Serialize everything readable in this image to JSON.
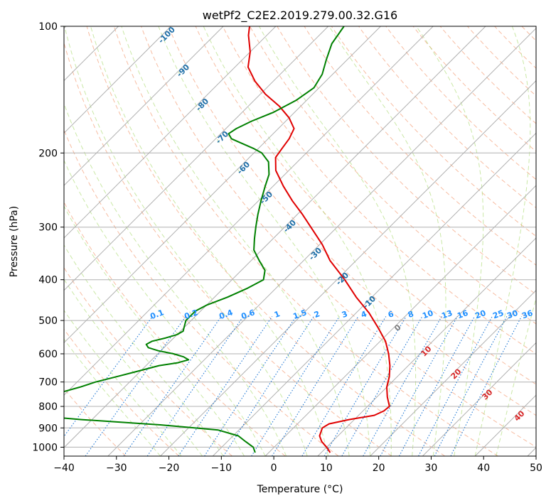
{
  "chart_data": {
    "type": "line",
    "title": "wetPf2_C2E2.2019.279.00.32.G16",
    "xlabel": "Temperature (°C)",
    "ylabel": "Pressure (hPa)",
    "xlim": [
      -40,
      50
    ],
    "ylim": [
      1050,
      100
    ],
    "y_scale": "log",
    "skew": true,
    "grid": true,
    "x_ticks": [
      -40,
      -30,
      -20,
      -10,
      0,
      10,
      20,
      30,
      40,
      50
    ],
    "x_tick_labels": [
      "−40",
      "−30",
      "−20",
      "−10",
      "0",
      "10",
      "20",
      "30",
      "40",
      "50"
    ],
    "y_ticks": [
      100,
      200,
      300,
      400,
      500,
      600,
      700,
      800,
      900,
      1000
    ],
    "y_tick_labels": [
      "100",
      "200",
      "300",
      "400",
      "500",
      "600",
      "700",
      "800",
      "900",
      "1000"
    ],
    "series": [
      {
        "color": "#e00000",
        "p": [
          1030,
          1000,
          970,
          940,
          900,
          880,
          860,
          840,
          820,
          800,
          760,
          720,
          680,
          640,
          600,
          560,
          520,
          480,
          440,
          400,
          360,
          330,
          300,
          280,
          260,
          240,
          220,
          205,
          195,
          185,
          175,
          165,
          155,
          145,
          135,
          125,
          115,
          105,
          100
        ],
        "t": [
          11.7,
          10.0,
          8.0,
          6.5,
          5.5,
          6.0,
          9.0,
          13.0,
          14.0,
          14.2,
          12.0,
          10.0,
          8.5,
          6.5,
          4.0,
          1.0,
          -3.0,
          -7.5,
          -13.0,
          -18.5,
          -25.0,
          -29.5,
          -35.0,
          -39.0,
          -43.5,
          -48.0,
          -52.5,
          -55.0,
          -55.5,
          -56.0,
          -57.0,
          -60.0,
          -64.0,
          -69.0,
          -73.5,
          -77.5,
          -80.0,
          -83.5,
          -85.0
        ]
      },
      {
        "color": "#008000",
        "p": [
          1030,
          1000,
          970,
          940,
          910,
          885,
          860,
          840,
          820,
          808,
          800,
          790,
          780,
          770,
          760,
          750,
          740,
          720,
          700,
          680,
          660,
          640,
          630,
          620,
          610,
          600,
          590,
          580,
          570,
          560,
          550,
          540,
          530,
          520,
          510,
          500,
          490,
          475,
          460,
          440,
          420,
          400,
          380,
          360,
          340,
          320,
          300,
          280,
          260,
          240,
          225,
          210,
          200,
          195,
          190,
          185,
          180,
          175,
          168,
          160,
          150,
          140,
          130,
          120,
          110,
          100
        ],
        "t": [
          -2.6,
          -4.0,
          -6.5,
          -9.0,
          -14.0,
          -26.0,
          -42.0,
          -52.5,
          -58.0,
          -61.0,
          -61.6,
          -62.0,
          -61.5,
          -59.0,
          -56.0,
          -53.5,
          -51.0,
          -48.5,
          -46.5,
          -43.5,
          -40.5,
          -37.5,
          -34.5,
          -33.0,
          -34.5,
          -37.0,
          -40.5,
          -43.0,
          -44.0,
          -43.5,
          -41.5,
          -40.0,
          -39.5,
          -40.0,
          -40.5,
          -41.0,
          -41.0,
          -41.0,
          -40.0,
          -37.5,
          -35.5,
          -34.0,
          -35.5,
          -38.5,
          -41.5,
          -43.5,
          -45.5,
          -47.5,
          -49.5,
          -51.5,
          -53.0,
          -55.5,
          -58.5,
          -61.0,
          -64.0,
          -67.0,
          -68.5,
          -68.0,
          -66.5,
          -64.0,
          -62.0,
          -61.0,
          -62.0,
          -64.0,
          -66.0,
          -67.0
        ]
      }
    ],
    "dry_adiabat_labels": [
      "-100",
      "-90",
      "-80",
      "-70",
      "-60",
      "-50",
      "-40",
      "-30",
      "-20",
      "-10",
      "0",
      "10",
      "20",
      "30",
      "40"
    ],
    "mixing_ratio_labels": [
      "0.1",
      "0.2",
      "0.4",
      "0.6",
      "1",
      "1.5",
      "2",
      "3",
      "4",
      "6",
      "8",
      "10",
      "13",
      "16",
      "20",
      "25",
      "30",
      "36"
    ]
  }
}
